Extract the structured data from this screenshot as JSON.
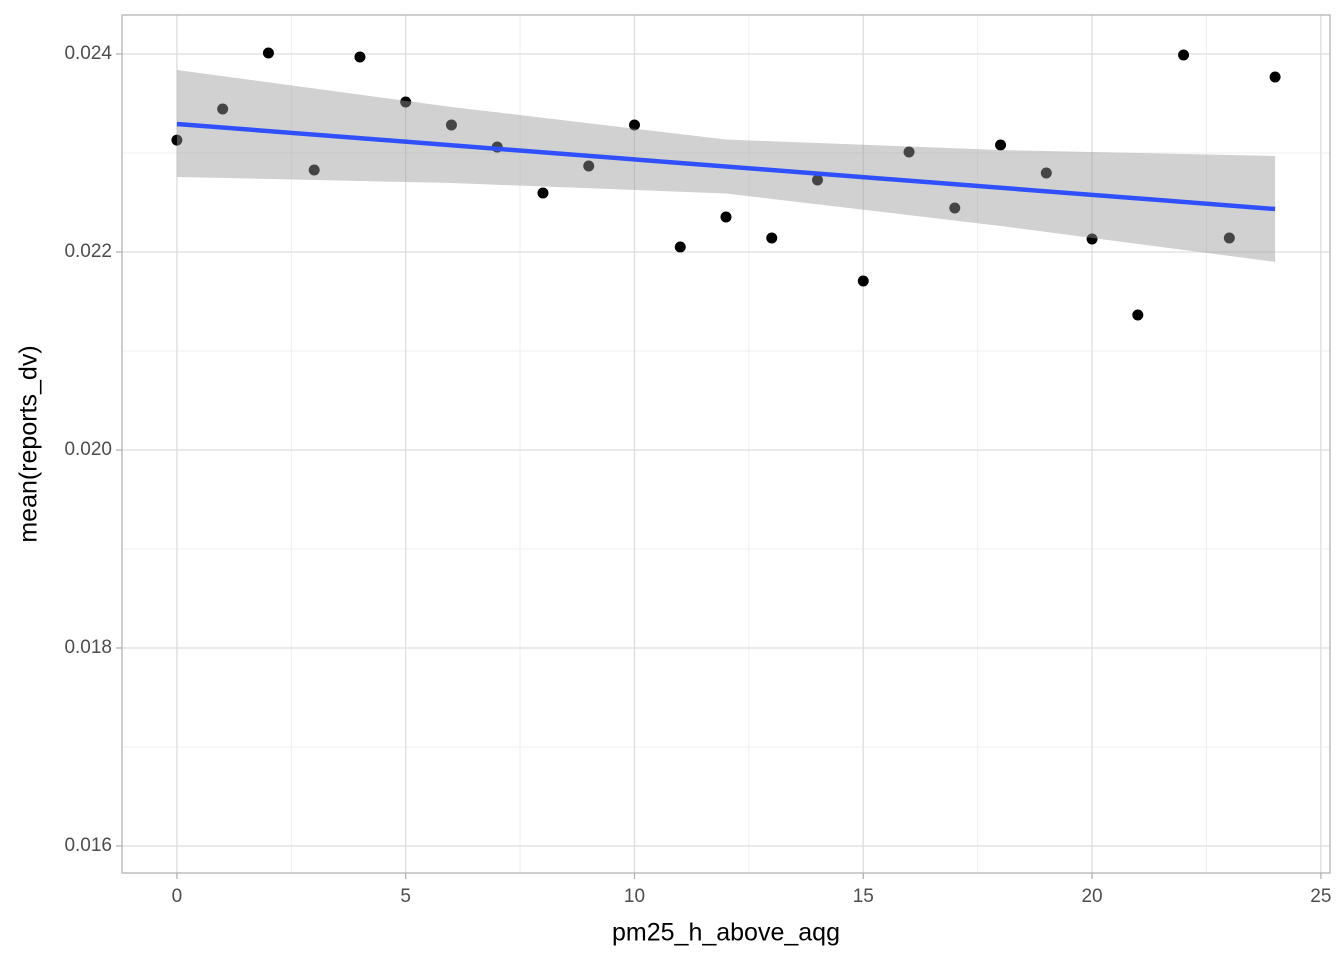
{
  "chart_data": {
    "type": "scatter",
    "xlabel": "pm25_h_above_aqg",
    "ylabel": "mean(reports_dv)",
    "x": [
      0,
      1,
      2,
      3,
      4,
      5,
      6,
      7,
      8,
      9,
      10,
      11,
      12,
      13,
      14,
      15,
      16,
      17,
      18,
      19,
      20,
      21,
      22,
      23,
      24
    ],
    "values": [
      0.02313,
      0.023444,
      0.02401,
      0.022828,
      0.02397,
      0.023515,
      0.023283,
      0.02306,
      0.022596,
      0.022869,
      0.023283,
      0.02205,
      0.022354,
      0.022141,
      0.022727,
      0.021707,
      0.02301,
      0.022444,
      0.023081,
      0.022798,
      0.022131,
      0.021364,
      0.02399,
      0.022141,
      0.023768
    ],
    "color": "#000000",
    "fit": {
      "x": [
        0,
        24
      ],
      "values": [
        0.023293,
        0.022434
      ],
      "color": "#3050ff"
    },
    "band": {
      "x": [
        0,
        6,
        12,
        18,
        24
      ],
      "upper": [
        0.023838,
        0.023465,
        0.023136,
        0.02303,
        0.02297
      ],
      "lower": [
        0.022758,
        0.022697,
        0.022591,
        0.022263,
        0.0219
      ],
      "color": "#999999"
    },
    "xlim": [
      -1.2,
      25.2
    ],
    "ylim": [
      0.015727,
      0.024394
    ],
    "xticks": [
      0,
      5,
      10,
      15,
      20,
      25
    ],
    "yticks": [
      0.016,
      0.018,
      {
        "value": 0.02,
        "label": "0.020"
      },
      0.022,
      0.024
    ],
    "x_minor_ticks": [
      2.5,
      7.5,
      12.5,
      17.5,
      22.5
    ],
    "y_minor_ticks": [
      0.017,
      0.019,
      0.021,
      0.023
    ],
    "grid": true
  }
}
